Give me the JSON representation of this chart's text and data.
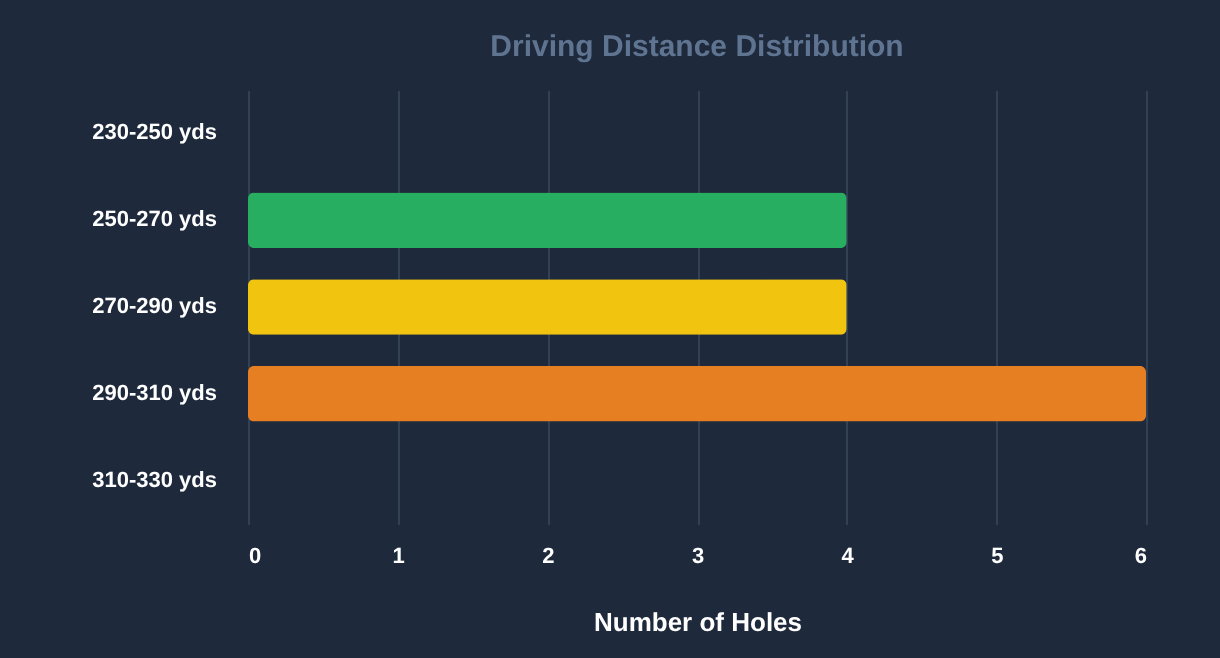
{
  "chart_data": {
    "type": "bar",
    "orientation": "horizontal",
    "title": "Driving Distance Distribution",
    "xlabel": "Number of Holes",
    "categories": [
      "230-250 yds",
      "250-270 yds",
      "270-290 yds",
      "290-310 yds",
      "310-330 yds"
    ],
    "values": [
      0,
      4,
      4,
      6,
      0
    ],
    "colors": [
      "#3498db",
      "#27ae60",
      "#f1c40f",
      "#e67e22",
      "#e74c3c"
    ],
    "xlim": [
      0,
      6
    ],
    "xticks": [
      0,
      1,
      2,
      3,
      4,
      5,
      6
    ],
    "grid": "x"
  }
}
